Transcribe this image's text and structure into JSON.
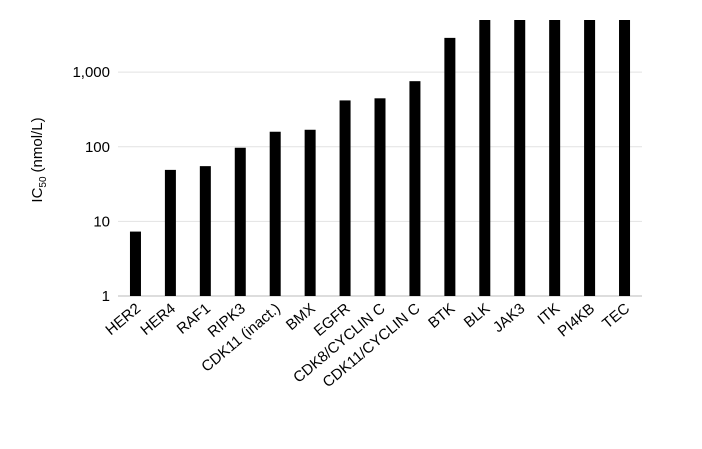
{
  "chart_data": {
    "type": "bar",
    "log_scale": true,
    "grid": true,
    "color": "#000000",
    "y_label": {
      "main": "IC",
      "sub": "50",
      "unit": "(nmol/L)"
    },
    "categories": [
      "HER2",
      "HER4",
      "RAF1",
      "RIPK3",
      "CDK11 (inact.)",
      "BMX",
      "EGFR",
      "CDK8/CYCLIN C",
      "CDK11/CYCLIN C",
      "BTK",
      "BLK",
      "JAK3",
      "ITK",
      "PI4KB",
      "TEC"
    ],
    "values": [
      7.3,
      49,
      55,
      97,
      159,
      169,
      418,
      446,
      757,
      2880,
      5000,
      5000,
      5000,
      5000,
      5000
    ],
    "ylim": [
      1,
      5000
    ],
    "yticks": [
      1,
      10,
      100,
      {
        "value": 1000,
        "label": "1,000"
      }
    ]
  }
}
